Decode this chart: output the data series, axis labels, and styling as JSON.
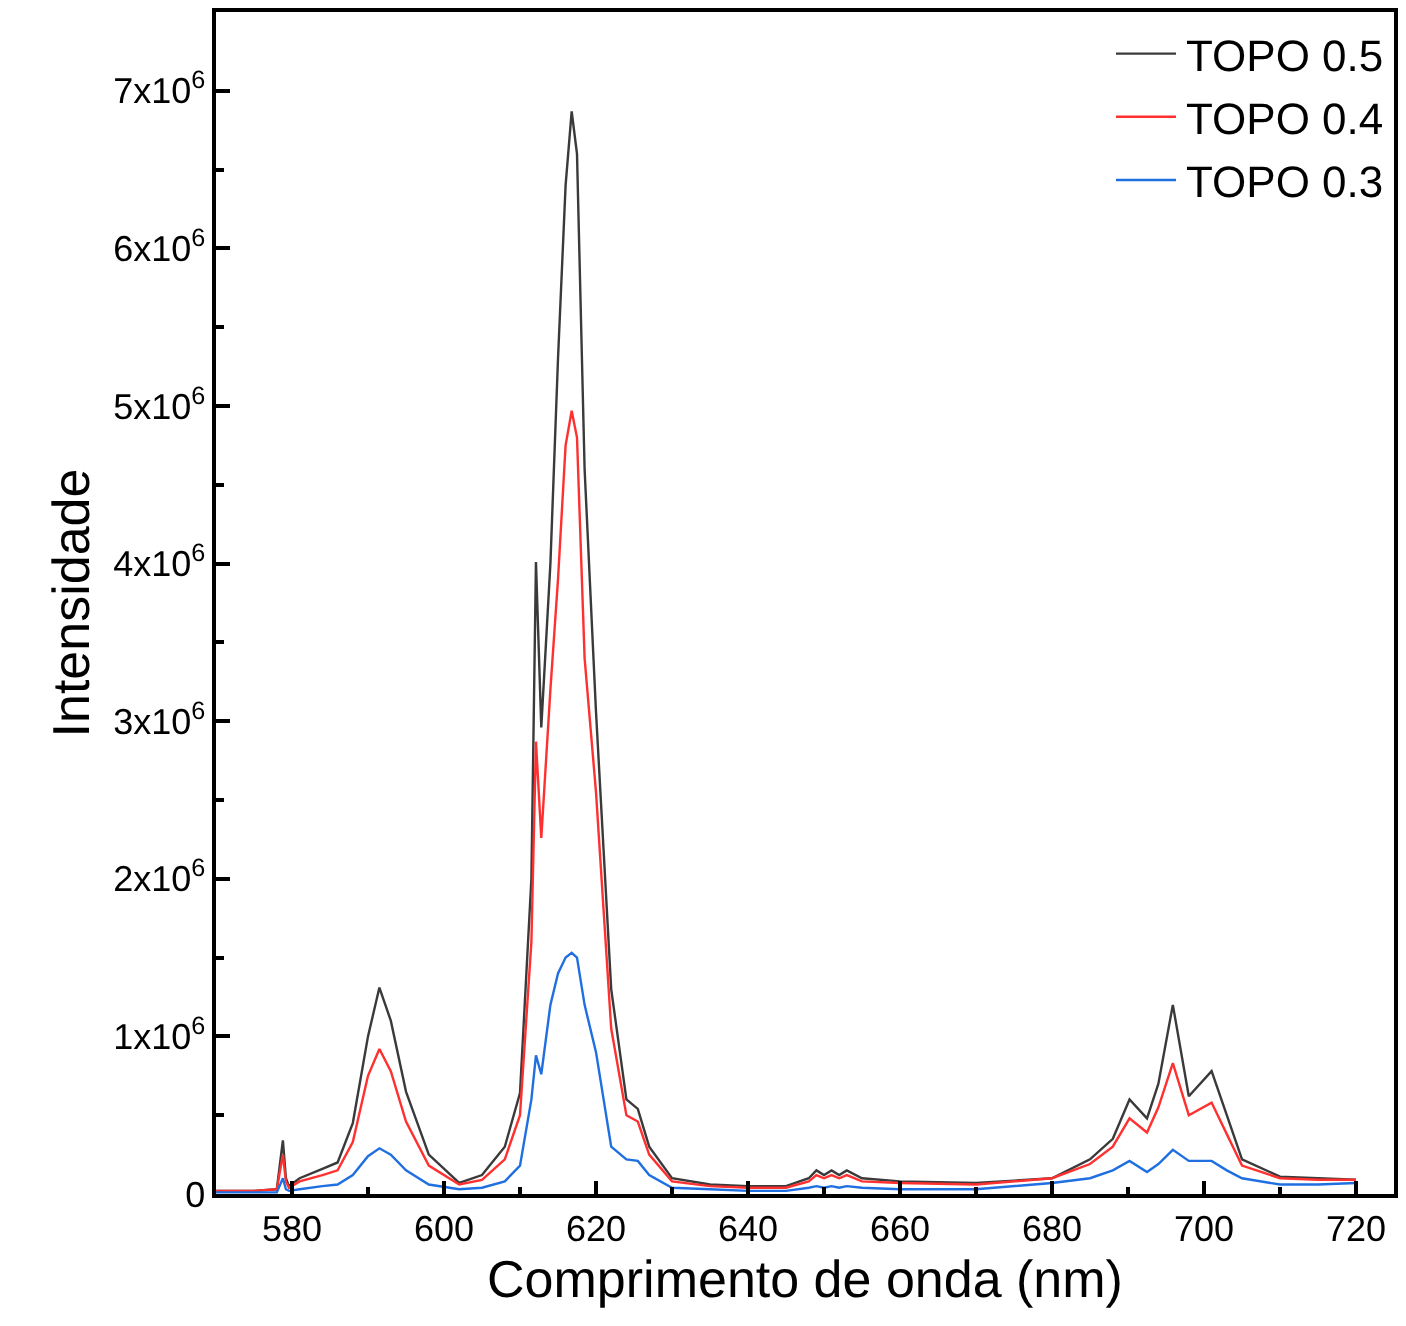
{
  "chart_data": {
    "type": "line",
    "xlabel": "Comprimento de onda (nm)",
    "ylabel": "Intensidade",
    "x": [
      570,
      575,
      578,
      578.8,
      579.2,
      579.6,
      581,
      584,
      586,
      588,
      590,
      591.5,
      593,
      595,
      598,
      602,
      605,
      608,
      610,
      611.5,
      612.1,
      612.8,
      614,
      615,
      616,
      616.8,
      617.5,
      618.5,
      620,
      622,
      624,
      625.5,
      627,
      630,
      635,
      640,
      645,
      648,
      649,
      650,
      651,
      652,
      653,
      655,
      660,
      670,
      680,
      685,
      688,
      690.2,
      692.5,
      694,
      695.9,
      698,
      701,
      703,
      705,
      710,
      715,
      720
    ],
    "series": [
      {
        "name": "TOPO 0.5",
        "color": "#3a3a3a",
        "values": [
          20000,
          20000,
          30000,
          340000,
          100000,
          50000,
          100000,
          160000,
          200000,
          450000,
          1000000,
          1310000,
          1100000,
          650000,
          250000,
          70000,
          120000,
          300000,
          640000,
          2000000,
          4010000,
          2960000,
          4000000,
          5300000,
          6400000,
          6870000,
          6600000,
          4600000,
          3060000,
          1300000,
          600000,
          540000,
          300000,
          100000,
          60000,
          50000,
          50000,
          100000,
          150000,
          120000,
          150000,
          120000,
          150000,
          100000,
          80000,
          70000,
          100000,
          220000,
          350000,
          600000,
          480000,
          700000,
          1200000,
          620000,
          780000,
          500000,
          220000,
          110000,
          100000,
          90000
        ]
      },
      {
        "name": "TOPO 0.4",
        "color": "#ff3030",
        "values": [
          20000,
          20000,
          30000,
          250000,
          80000,
          40000,
          80000,
          120000,
          150000,
          330000,
          750000,
          920000,
          780000,
          460000,
          180000,
          60000,
          90000,
          220000,
          500000,
          1600000,
          2870000,
          2260000,
          3200000,
          3900000,
          4750000,
          4970000,
          4800000,
          3400000,
          2550000,
          1050000,
          500000,
          460000,
          250000,
          80000,
          50000,
          40000,
          40000,
          80000,
          120000,
          100000,
          120000,
          100000,
          120000,
          80000,
          70000,
          60000,
          100000,
          190000,
          300000,
          480000,
          390000,
          550000,
          830000,
          500000,
          580000,
          380000,
          180000,
          100000,
          90000,
          90000
        ]
      },
      {
        "name": "TOPO 0.3",
        "color": "#1f6fe0",
        "values": [
          10000,
          10000,
          10000,
          100000,
          30000,
          20000,
          30000,
          50000,
          60000,
          120000,
          240000,
          290000,
          250000,
          150000,
          60000,
          30000,
          40000,
          80000,
          180000,
          600000,
          880000,
          760000,
          1200000,
          1400000,
          1500000,
          1530000,
          1500000,
          1200000,
          900000,
          300000,
          220000,
          210000,
          120000,
          40000,
          30000,
          20000,
          20000,
          40000,
          50000,
          40000,
          50000,
          40000,
          50000,
          40000,
          30000,
          30000,
          70000,
          100000,
          150000,
          210000,
          140000,
          190000,
          280000,
          210000,
          210000,
          150000,
          100000,
          60000,
          60000,
          70000
        ]
      }
    ],
    "xlim": [
      570,
      725
    ],
    "ylim": [
      0,
      7500000
    ],
    "xticks": [
      580,
      600,
      620,
      640,
      660,
      680,
      700,
      720
    ],
    "yticks": [
      0,
      {
        "value": 1000000,
        "label": "1x10$^{6}$"
      },
      {
        "value": 2000000,
        "label": "2x10$^{6}$"
      },
      {
        "value": 3000000,
        "label": "3x10$^{6}$"
      },
      {
        "value": 4000000,
        "label": "4x10$^{6}$"
      },
      {
        "value": 5000000,
        "label": "5x10$^{6}$"
      },
      {
        "value": 6000000,
        "label": "6x10$^{6}$"
      },
      {
        "value": 7000000,
        "label": "7x10$^{6}$"
      }
    ],
    "legend": "top right",
    "marker": "none",
    "line_style": "solid"
  }
}
